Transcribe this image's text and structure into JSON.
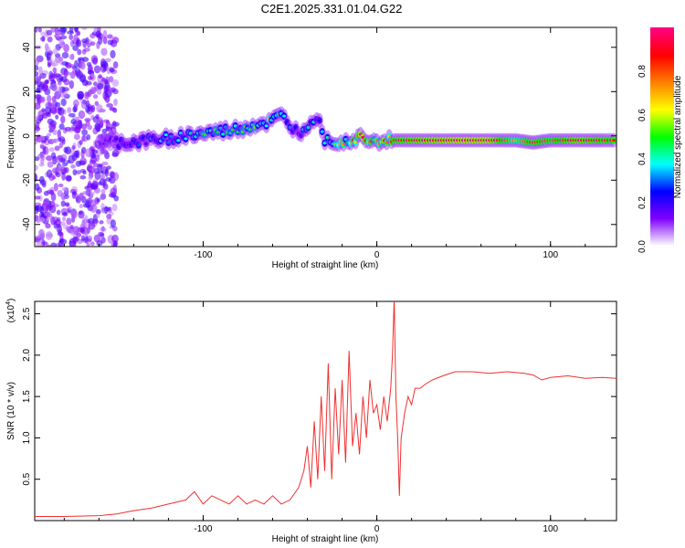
{
  "chart_data": [
    {
      "type": "heatmap",
      "title": "C2E1.2025.331.01.04.G22",
      "xlabel": "Height of straight line (km)",
      "ylabel": "Frequency (Hz)",
      "xlim": [
        -197,
        138
      ],
      "ylim": [
        -50,
        49
      ],
      "xticks": [
        -100,
        0,
        100
      ],
      "yticks": [
        -40,
        -20,
        0,
        20,
        40
      ],
      "colorbar": {
        "label": "Normalized spectral amplitude",
        "ticks": [
          "0.0",
          "0.2",
          "0.4",
          "0.6",
          "0.8"
        ],
        "range": [
          0,
          1
        ],
        "colors": [
          "#ffffff",
          "#8000ff",
          "#0000ff",
          "#00ffff",
          "#00ff00",
          "#ffff00",
          "#ff8000",
          "#ff0000",
          "#ff0080"
        ]
      },
      "ridge": [
        {
          "h": -160,
          "f": -3,
          "a": 0.15
        },
        {
          "h": -150,
          "f": -3,
          "a": 0.2
        },
        {
          "h": -140,
          "f": -3,
          "a": 0.25
        },
        {
          "h": -130,
          "f": -2,
          "a": 0.3
        },
        {
          "h": -120,
          "f": -1,
          "a": 0.35
        },
        {
          "h": -110,
          "f": 0,
          "a": 0.4
        },
        {
          "h": -100,
          "f": 1,
          "a": 0.45
        },
        {
          "h": -90,
          "f": 2,
          "a": 0.45
        },
        {
          "h": -80,
          "f": 3,
          "a": 0.5
        },
        {
          "h": -70,
          "f": 5,
          "a": 0.5
        },
        {
          "h": -62,
          "f": 6,
          "a": 0.55
        },
        {
          "h": -55,
          "f": 9,
          "a": 0.45
        },
        {
          "h": -50,
          "f": 5,
          "a": 0.35
        },
        {
          "h": -45,
          "f": 1,
          "a": 0.3
        },
        {
          "h": -38,
          "f": 7,
          "a": 0.4
        },
        {
          "h": -33,
          "f": 9,
          "a": 0.35
        },
        {
          "h": -30,
          "f": -2,
          "a": 0.4
        },
        {
          "h": -22,
          "f": -2,
          "a": 0.55
        },
        {
          "h": -15,
          "f": -2,
          "a": 0.7
        },
        {
          "h": -8,
          "f": 0,
          "a": 0.85
        },
        {
          "h": 0,
          "f": -2,
          "a": 0.75
        },
        {
          "h": 10,
          "f": -2,
          "a": 0.85
        },
        {
          "h": 25,
          "f": -2,
          "a": 0.9
        },
        {
          "h": 45,
          "f": -2,
          "a": 0.95
        },
        {
          "h": 65,
          "f": -2,
          "a": 0.95
        },
        {
          "h": 80,
          "f": -2,
          "a": 0.7
        },
        {
          "h": 90,
          "f": -3,
          "a": 0.85
        },
        {
          "h": 100,
          "f": -2,
          "a": 0.8
        },
        {
          "h": 115,
          "f": -2,
          "a": 0.9
        },
        {
          "h": 130,
          "f": -2,
          "a": 0.85
        },
        {
          "h": 138,
          "f": -2,
          "a": 0.85
        }
      ]
    },
    {
      "type": "line",
      "xlabel": "Height of straight line (km)",
      "ylabel": "SNR (10 * v/v)",
      "yscale_label": "(x10",
      "yscale_exp": "4",
      "xlim": [
        -197,
        138
      ],
      "ylim": [
        0,
        2.65
      ],
      "xticks": [
        -100,
        0,
        100
      ],
      "yticks": [
        "0.5",
        "1.0",
        "1.5",
        "2.0",
        "2.5"
      ],
      "color": "#f03030",
      "x": [
        -197,
        -180,
        -160,
        -150,
        -140,
        -130,
        -120,
        -110,
        -105,
        -100,
        -95,
        -90,
        -85,
        -80,
        -75,
        -70,
        -65,
        -60,
        -55,
        -50,
        -45,
        -42,
        -40,
        -38,
        -36,
        -34,
        -32,
        -30,
        -28,
        -26,
        -24,
        -22,
        -20,
        -18,
        -16,
        -14,
        -12,
        -10,
        -8,
        -6,
        -4,
        -2,
        0,
        2,
        4,
        6,
        8,
        9,
        10,
        11,
        12,
        13,
        14,
        16,
        18,
        20,
        22,
        25,
        28,
        32,
        38,
        45,
        55,
        65,
        75,
        85,
        90,
        95,
        100,
        110,
        120,
        130,
        138
      ],
      "y": [
        0.05,
        0.05,
        0.06,
        0.08,
        0.12,
        0.15,
        0.2,
        0.25,
        0.35,
        0.2,
        0.3,
        0.25,
        0.2,
        0.3,
        0.2,
        0.25,
        0.2,
        0.3,
        0.2,
        0.25,
        0.4,
        0.6,
        0.9,
        0.4,
        1.2,
        0.5,
        1.5,
        0.6,
        1.9,
        0.5,
        1.6,
        0.8,
        1.7,
        0.7,
        2.05,
        0.9,
        1.3,
        0.8,
        1.5,
        1.0,
        1.7,
        1.3,
        1.4,
        1.1,
        1.5,
        1.2,
        1.6,
        2.0,
        2.7,
        1.5,
        1.0,
        0.3,
        1.0,
        1.3,
        1.5,
        1.4,
        1.6,
        1.6,
        1.65,
        1.7,
        1.75,
        1.8,
        1.8,
        1.78,
        1.8,
        1.78,
        1.76,
        1.7,
        1.73,
        1.75,
        1.72,
        1.73,
        1.72
      ]
    }
  ]
}
